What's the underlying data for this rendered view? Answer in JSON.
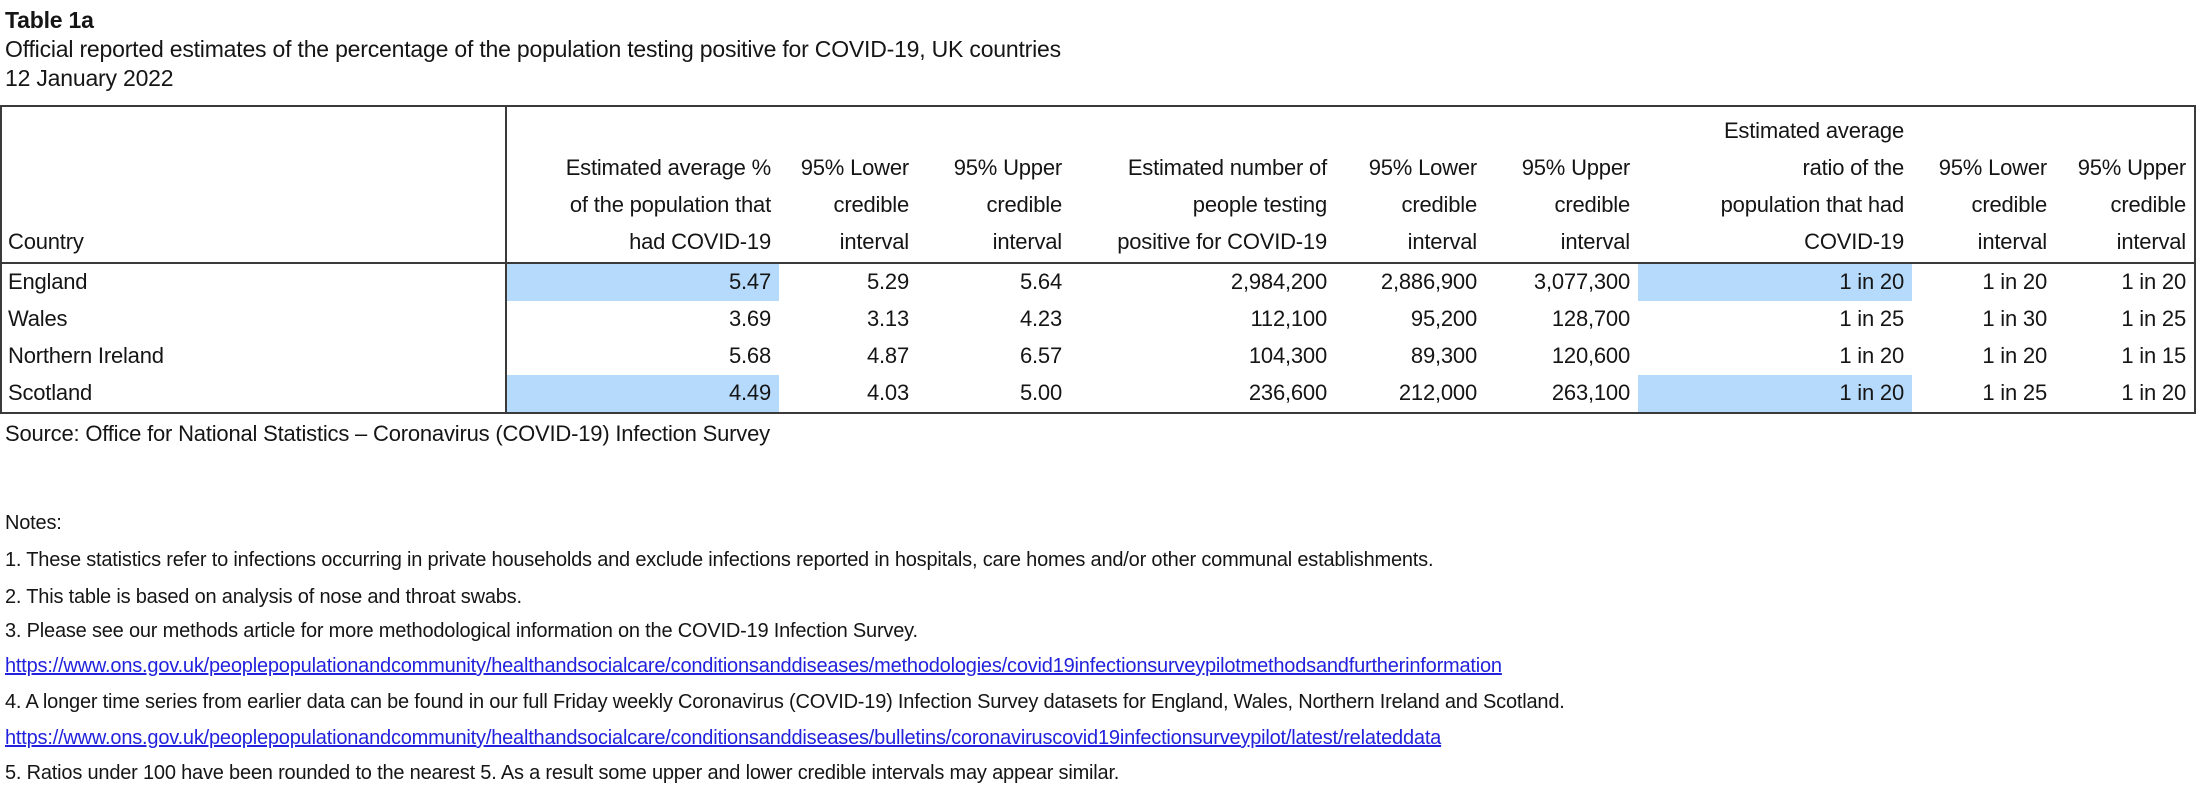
{
  "document": {
    "title": "Table 1a",
    "subtitle": "Official reported estimates of the percentage of the population testing positive for COVID-19, UK countries",
    "date": "12 January 2022"
  },
  "table": {
    "headers": [
      "Country",
      "Estimated average %\nof the population that\nhad COVID-19",
      "95% Lower\ncredible\ninterval",
      "95% Upper\ncredible\ninterval",
      "Estimated number of\npeople testing\npositive for COVID-19",
      "95% Lower\ncredible\ninterval",
      "95% Upper\ncredible\ninterval",
      "Estimated average\nratio of the\npopulation that had\nCOVID-19",
      "95% Lower\ncredible\ninterval",
      "95% Upper\ncredible\ninterval"
    ],
    "rows": [
      {
        "country": "England",
        "values": [
          "5.47",
          "5.29",
          "5.64",
          "2,984,200",
          "2,886,900",
          "3,077,300",
          "1 in 20",
          "1 in 20",
          "1 in 20"
        ]
      },
      {
        "country": "Wales",
        "values": [
          "3.69",
          "3.13",
          "4.23",
          "112,100",
          "95,200",
          "128,700",
          "1 in 25",
          "1 in 30",
          "1 in 25"
        ]
      },
      {
        "country": "Northern Ireland",
        "values": [
          "5.68",
          "4.87",
          "6.57",
          "104,300",
          "89,300",
          "120,600",
          "1 in 20",
          "1 in 20",
          "1 in 15"
        ]
      },
      {
        "country": "Scotland",
        "values": [
          "4.49",
          "4.03",
          "5.00",
          "236,600",
          "212,000",
          "263,100",
          "1 in 20",
          "1 in 25",
          "1 in 20"
        ]
      }
    ],
    "highlighted_cells": [
      {
        "row": 0,
        "col": 0
      },
      {
        "row": 0,
        "col": 6
      },
      {
        "row": 3,
        "col": 0
      },
      {
        "row": 3,
        "col": 6
      }
    ]
  },
  "source": "Source: Office for National Statistics – Coronavirus (COVID-19) Infection Survey",
  "notes": {
    "label": "Notes:",
    "items": [
      "1. These statistics refer to infections occurring in private households and exclude infections reported in hospitals, care homes and/or other communal establishments.",
      "2. This table is based on analysis of nose and throat swabs.",
      "3. Please see our methods article for more methodological information on the COVID-19 Infection Survey.",
      "4. A longer time series from earlier data can be found in our full Friday weekly Coronavirus (COVID-19) Infection Survey datasets for England, Wales, Northern Ireland and Scotland.",
      "5. Ratios under 100 have been rounded to the nearest 5. As a result some upper and lower credible intervals may appear similar."
    ],
    "links": [
      "https://www.ons.gov.uk/peoplepopulationandcommunity/healthandsocialcare/conditionsanddiseases/methodologies/covid19infectionsurveypilotmethodsandfurtherinformation",
      "https://www.ons.gov.uk/peoplepopulationandcommunity/healthandsocialcare/conditionsanddiseases/bulletins/coronaviruscovid19infectionsurveypilot/latest/relateddata"
    ]
  },
  "colors": {
    "highlight": "#B6DAFB",
    "link": "#2222DD",
    "border": "#3A3A3A",
    "text": "#151515"
  }
}
